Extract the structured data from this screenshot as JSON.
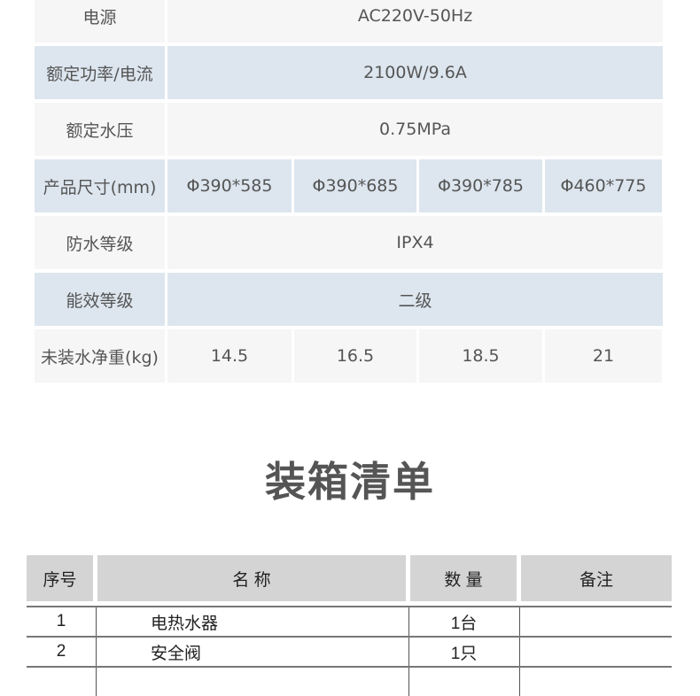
{
  "spec_table": {
    "rows": [
      {
        "label": "电源",
        "values": [
          "AC220V-50Hz"
        ]
      },
      {
        "label": "额定功率/电流",
        "values": [
          "2100W/9.6A"
        ]
      },
      {
        "label": "额定水压",
        "values": [
          "0.75MPa"
        ]
      },
      {
        "label": "产品尺寸(mm)",
        "values": [
          "Φ390*585",
          "Φ390*685",
          "Φ390*785",
          "Φ460*775"
        ]
      },
      {
        "label": "防水等级",
        "values": [
          "IPX4"
        ]
      },
      {
        "label": "能效等级",
        "values": [
          "二级"
        ]
      },
      {
        "label": "未装水净重(kg)",
        "values": [
          "14.5",
          "16.5",
          "18.5",
          "21"
        ]
      }
    ]
  },
  "packing": {
    "title": "装箱清单",
    "headers": [
      "序号",
      "名 称",
      "数 量",
      "备注"
    ],
    "rows": [
      {
        "no": "1",
        "name": "电热水器",
        "qty": "1台",
        "note": ""
      },
      {
        "no": "2",
        "name": "安全阀",
        "qty": "1只",
        "note": ""
      }
    ]
  }
}
